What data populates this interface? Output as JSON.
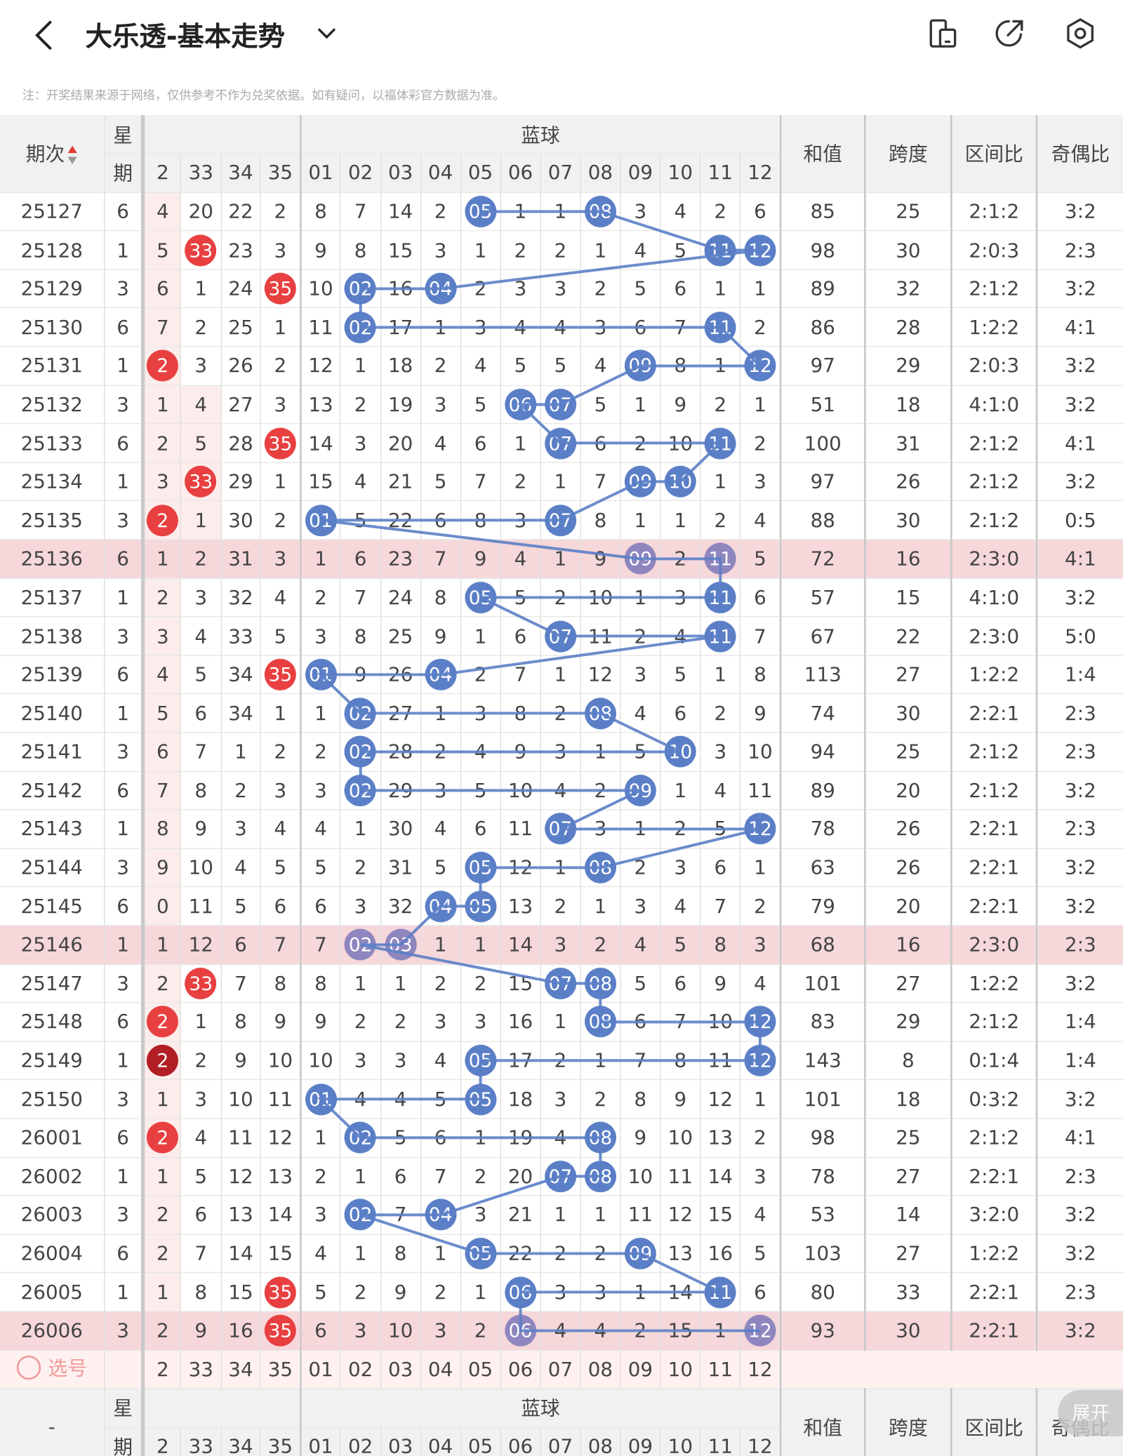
{
  "header": {
    "title": "大乐透-基本走势"
  },
  "notice": "注：开奖结果来源于网络，仅供参考不作为兑奖依据。如有疑问，以福体彩官方数据为准。",
  "columns": {
    "period": "期次",
    "weekday_top": "星",
    "weekday_bottom": "期",
    "blue_group": "蓝球",
    "sum": "和值",
    "span": "跨度",
    "zone": "区间比",
    "odd_even": "奇偶比",
    "front_nums": [
      "2",
      "33",
      "34",
      "35"
    ],
    "blue_nums": [
      "01",
      "02",
      "03",
      "04",
      "05",
      "06",
      "07",
      "08",
      "09",
      "10",
      "11",
      "12"
    ]
  },
  "rows": [
    {
      "p": "25127",
      "w": "6",
      "f": [
        "4",
        "20",
        "22",
        "2"
      ],
      "b": [
        "8",
        "7",
        "14",
        "2",
        "05",
        "1",
        "1",
        "08",
        "3",
        "4",
        "2",
        "6"
      ],
      "s": "85",
      "k": "25",
      "z": "2:1:2",
      "o": "3:2"
    },
    {
      "p": "25128",
      "w": "1",
      "f": [
        "5",
        "33",
        "23",
        "3"
      ],
      "b": [
        "9",
        "8",
        "15",
        "3",
        "1",
        "2",
        "2",
        "1",
        "4",
        "5",
        "11",
        "12"
      ],
      "s": "98",
      "k": "30",
      "z": "2:0:3",
      "o": "2:3"
    },
    {
      "p": "25129",
      "w": "3",
      "f": [
        "6",
        "1",
        "24",
        "35"
      ],
      "b": [
        "10",
        "02",
        "16",
        "04",
        "2",
        "3",
        "3",
        "2",
        "5",
        "6",
        "1",
        "1"
      ],
      "s": "89",
      "k": "32",
      "z": "2:1:2",
      "o": "3:2"
    },
    {
      "p": "25130",
      "w": "6",
      "f": [
        "7",
        "2",
        "25",
        "1"
      ],
      "b": [
        "11",
        "02",
        "17",
        "1",
        "3",
        "4",
        "4",
        "3",
        "6",
        "7",
        "11",
        "2"
      ],
      "s": "86",
      "k": "28",
      "z": "1:2:2",
      "o": "4:1"
    },
    {
      "p": "25131",
      "w": "1",
      "f": [
        "2",
        "3",
        "26",
        "2"
      ],
      "b": [
        "12",
        "1",
        "18",
        "2",
        "4",
        "5",
        "5",
        "4",
        "09",
        "8",
        "1",
        "12"
      ],
      "s": "97",
      "k": "29",
      "z": "2:0:3",
      "o": "3:2"
    },
    {
      "p": "25132",
      "w": "3",
      "f": [
        "1",
        "4",
        "27",
        "3"
      ],
      "b": [
        "13",
        "2",
        "19",
        "3",
        "5",
        "06",
        "07",
        "5",
        "1",
        "9",
        "2",
        "1"
      ],
      "s": "51",
      "k": "18",
      "z": "4:1:0",
      "o": "3:2"
    },
    {
      "p": "25133",
      "w": "6",
      "f": [
        "2",
        "5",
        "28",
        "35"
      ],
      "b": [
        "14",
        "3",
        "20",
        "4",
        "6",
        "1",
        "07",
        "6",
        "2",
        "10",
        "11",
        "2"
      ],
      "s": "100",
      "k": "31",
      "z": "2:1:2",
      "o": "4:1"
    },
    {
      "p": "25134",
      "w": "1",
      "f": [
        "3",
        "33",
        "29",
        "1"
      ],
      "b": [
        "15",
        "4",
        "21",
        "5",
        "7",
        "2",
        "1",
        "7",
        "09",
        "10",
        "1",
        "3"
      ],
      "s": "97",
      "k": "26",
      "z": "2:1:2",
      "o": "3:2"
    },
    {
      "p": "25135",
      "w": "3",
      "f": [
        "2",
        "1",
        "30",
        "2"
      ],
      "b": [
        "01",
        "5",
        "22",
        "6",
        "8",
        "3",
        "07",
        "8",
        "1",
        "1",
        "2",
        "4"
      ],
      "s": "88",
      "k": "30",
      "z": "2:1:2",
      "o": "0:5"
    },
    {
      "p": "25136",
      "w": "6",
      "f": [
        "1",
        "2",
        "31",
        "3"
      ],
      "b": [
        "1",
        "6",
        "23",
        "7",
        "9",
        "4",
        "1",
        "9",
        "09",
        "2",
        "11",
        "5"
      ],
      "s": "72",
      "k": "16",
      "z": "2:3:0",
      "o": "4:1"
    },
    {
      "p": "25137",
      "w": "1",
      "f": [
        "2",
        "3",
        "32",
        "4"
      ],
      "b": [
        "2",
        "7",
        "24",
        "8",
        "05",
        "5",
        "2",
        "10",
        "1",
        "3",
        "11",
        "6"
      ],
      "s": "57",
      "k": "15",
      "z": "4:1:0",
      "o": "3:2"
    },
    {
      "p": "25138",
      "w": "3",
      "f": [
        "3",
        "4",
        "33",
        "5"
      ],
      "b": [
        "3",
        "8",
        "25",
        "9",
        "1",
        "6",
        "07",
        "11",
        "2",
        "4",
        "11",
        "7"
      ],
      "s": "67",
      "k": "22",
      "z": "2:3:0",
      "o": "5:0"
    },
    {
      "p": "25139",
      "w": "6",
      "f": [
        "4",
        "5",
        "34",
        "35"
      ],
      "b": [
        "01",
        "9",
        "26",
        "04",
        "2",
        "7",
        "1",
        "12",
        "3",
        "5",
        "1",
        "8"
      ],
      "s": "113",
      "k": "27",
      "z": "1:2:2",
      "o": "1:4"
    },
    {
      "p": "25140",
      "w": "1",
      "f": [
        "5",
        "6",
        "34",
        "1"
      ],
      "b": [
        "1",
        "02",
        "27",
        "1",
        "3",
        "8",
        "2",
        "08",
        "4",
        "6",
        "2",
        "9"
      ],
      "s": "74",
      "k": "30",
      "z": "2:2:1",
      "o": "2:3"
    },
    {
      "p": "25141",
      "w": "3",
      "f": [
        "6",
        "7",
        "1",
        "2"
      ],
      "b": [
        "2",
        "02",
        "28",
        "2",
        "4",
        "9",
        "3",
        "1",
        "5",
        "10",
        "3",
        "10"
      ],
      "s": "94",
      "k": "25",
      "z": "2:1:2",
      "o": "2:3"
    },
    {
      "p": "25142",
      "w": "6",
      "f": [
        "7",
        "8",
        "2",
        "3"
      ],
      "b": [
        "3",
        "02",
        "29",
        "3",
        "5",
        "10",
        "4",
        "2",
        "09",
        "1",
        "4",
        "11"
      ],
      "s": "89",
      "k": "20",
      "z": "2:1:2",
      "o": "3:2"
    },
    {
      "p": "25143",
      "w": "1",
      "f": [
        "8",
        "9",
        "3",
        "4"
      ],
      "b": [
        "4",
        "1",
        "30",
        "4",
        "6",
        "11",
        "07",
        "3",
        "1",
        "2",
        "5",
        "12"
      ],
      "s": "78",
      "k": "26",
      "z": "2:2:1",
      "o": "2:3"
    },
    {
      "p": "25144",
      "w": "3",
      "f": [
        "9",
        "10",
        "4",
        "5"
      ],
      "b": [
        "5",
        "2",
        "31",
        "5",
        "05",
        "12",
        "1",
        "08",
        "2",
        "3",
        "6",
        "1"
      ],
      "s": "63",
      "k": "26",
      "z": "2:2:1",
      "o": "3:2"
    },
    {
      "p": "25145",
      "w": "6",
      "f": [
        "0",
        "11",
        "5",
        "6"
      ],
      "b": [
        "6",
        "3",
        "32",
        "04",
        "05",
        "13",
        "2",
        "1",
        "3",
        "4",
        "7",
        "2"
      ],
      "s": "79",
      "k": "20",
      "z": "2:2:1",
      "o": "3:2"
    },
    {
      "p": "25146",
      "w": "1",
      "f": [
        "1",
        "12",
        "6",
        "7"
      ],
      "b": [
        "7",
        "02",
        "03",
        "1",
        "1",
        "14",
        "3",
        "2",
        "4",
        "5",
        "8",
        "3"
      ],
      "s": "68",
      "k": "16",
      "z": "2:3:0",
      "o": "2:3"
    },
    {
      "p": "25147",
      "w": "3",
      "f": [
        "2",
        "33",
        "7",
        "8"
      ],
      "b": [
        "8",
        "1",
        "1",
        "2",
        "2",
        "15",
        "07",
        "08",
        "5",
        "6",
        "9",
        "4"
      ],
      "s": "101",
      "k": "27",
      "z": "1:2:2",
      "o": "3:2"
    },
    {
      "p": "25148",
      "w": "6",
      "f": [
        "2",
        "1",
        "8",
        "9"
      ],
      "b": [
        "9",
        "2",
        "2",
        "3",
        "3",
        "16",
        "1",
        "08",
        "6",
        "7",
        "10",
        "12"
      ],
      "s": "83",
      "k": "29",
      "z": "2:1:2",
      "o": "1:4"
    },
    {
      "p": "25149",
      "w": "1",
      "f": [
        "2",
        "2",
        "9",
        "10"
      ],
      "b": [
        "10",
        "3",
        "3",
        "4",
        "05",
        "17",
        "2",
        "1",
        "7",
        "8",
        "11",
        "12"
      ],
      "s": "143",
      "k": "8",
      "z": "0:1:4",
      "o": "1:4"
    },
    {
      "p": "25150",
      "w": "3",
      "f": [
        "1",
        "3",
        "10",
        "11"
      ],
      "b": [
        "01",
        "4",
        "4",
        "5",
        "05",
        "18",
        "3",
        "2",
        "8",
        "9",
        "12",
        "1"
      ],
      "s": "101",
      "k": "18",
      "z": "0:3:2",
      "o": "3:2"
    },
    {
      "p": "26001",
      "w": "6",
      "f": [
        "2",
        "4",
        "11",
        "12"
      ],
      "b": [
        "1",
        "02",
        "5",
        "6",
        "1",
        "19",
        "4",
        "08",
        "9",
        "10",
        "13",
        "2"
      ],
      "s": "98",
      "k": "25",
      "z": "2:1:2",
      "o": "4:1"
    },
    {
      "p": "26002",
      "w": "1",
      "f": [
        "1",
        "5",
        "12",
        "13"
      ],
      "b": [
        "2",
        "1",
        "6",
        "7",
        "2",
        "20",
        "07",
        "08",
        "10",
        "11",
        "14",
        "3"
      ],
      "s": "78",
      "k": "27",
      "z": "2:2:1",
      "o": "2:3"
    },
    {
      "p": "26003",
      "w": "3",
      "f": [
        "2",
        "6",
        "13",
        "14"
      ],
      "b": [
        "3",
        "02",
        "7",
        "04",
        "3",
        "21",
        "1",
        "1",
        "11",
        "12",
        "15",
        "4"
      ],
      "s": "53",
      "k": "14",
      "z": "3:2:0",
      "o": "3:2"
    },
    {
      "p": "26004",
      "w": "6",
      "f": [
        "2",
        "7",
        "14",
        "15"
      ],
      "b": [
        "4",
        "1",
        "8",
        "1",
        "05",
        "22",
        "2",
        "2",
        "09",
        "13",
        "16",
        "5"
      ],
      "s": "103",
      "k": "27",
      "z": "1:2:2",
      "o": "3:2"
    },
    {
      "p": "26005",
      "w": "1",
      "f": [
        "1",
        "8",
        "15",
        "35"
      ],
      "b": [
        "5",
        "2",
        "9",
        "2",
        "1",
        "06",
        "3",
        "3",
        "1",
        "14",
        "11",
        "6"
      ],
      "s": "80",
      "k": "33",
      "z": "2:2:1",
      "o": "2:3"
    },
    {
      "p": "26006",
      "w": "3",
      "f": [
        "2",
        "9",
        "16",
        "35"
      ],
      "b": [
        "6",
        "3",
        "10",
        "3",
        "2",
        "06",
        "4",
        "4",
        "2",
        "15",
        "1",
        "12"
      ],
      "s": "93",
      "k": "30",
      "z": "2:2:1",
      "o": "3:2"
    }
  ],
  "balls": {
    "front": [
      [
        1,
        1
      ],
      [
        2,
        3
      ],
      [
        4,
        0
      ],
      [
        6,
        3
      ],
      [
        7,
        1
      ],
      [
        8,
        0
      ],
      [
        12,
        3
      ],
      [
        20,
        1
      ],
      [
        21,
        0
      ],
      [
        22,
        0
      ],
      [
        24,
        0
      ],
      [
        28,
        3
      ],
      [
        29,
        3
      ]
    ],
    "front_dark": [
      [
        22,
        0
      ]
    ],
    "blue": [
      [
        0,
        [
          4,
          7
        ]
      ],
      [
        1,
        [
          10,
          11
        ]
      ],
      [
        2,
        [
          1,
          3
        ]
      ],
      [
        3,
        [
          1,
          10
        ]
      ],
      [
        4,
        [
          8,
          11
        ]
      ],
      [
        5,
        [
          5,
          6
        ]
      ],
      [
        6,
        [
          6,
          10
        ]
      ],
      [
        7,
        [
          8,
          9
        ]
      ],
      [
        8,
        [
          0,
          6
        ]
      ],
      [
        9,
        [
          8,
          10
        ]
      ],
      [
        10,
        [
          4,
          10
        ]
      ],
      [
        11,
        [
          6,
          10
        ]
      ],
      [
        12,
        [
          0,
          3
        ]
      ],
      [
        13,
        [
          1,
          7
        ]
      ],
      [
        14,
        [
          1,
          9
        ]
      ],
      [
        15,
        [
          1,
          8
        ]
      ],
      [
        16,
        [
          6,
          11
        ]
      ],
      [
        17,
        [
          4,
          7
        ]
      ],
      [
        18,
        [
          3,
          4
        ]
      ],
      [
        19,
        [
          1,
          2
        ]
      ],
      [
        20,
        [
          6,
          7
        ]
      ],
      [
        21,
        [
          7,
          11
        ]
      ],
      [
        22,
        [
          4,
          11
        ]
      ],
      [
        23,
        [
          0,
          4
        ]
      ],
      [
        24,
        [
          1,
          7
        ]
      ],
      [
        25,
        [
          6,
          7
        ]
      ],
      [
        26,
        [
          1,
          3
        ]
      ],
      [
        27,
        [
          4,
          8
        ]
      ],
      [
        28,
        [
          5,
          10
        ]
      ],
      [
        29,
        [
          5,
          11
        ]
      ]
    ]
  },
  "highlight_rows": [
    9,
    19,
    29
  ],
  "pick": {
    "label": "选号",
    "front_nums": [
      "2",
      "33",
      "34",
      "35"
    ]
  },
  "footer": {
    "dash": "-"
  },
  "expand_label": "展开",
  "colors": {
    "red": "#e84040",
    "blue": "#5b7fc7",
    "highlight": "#f6d7da",
    "purple": "#8f86bf"
  }
}
